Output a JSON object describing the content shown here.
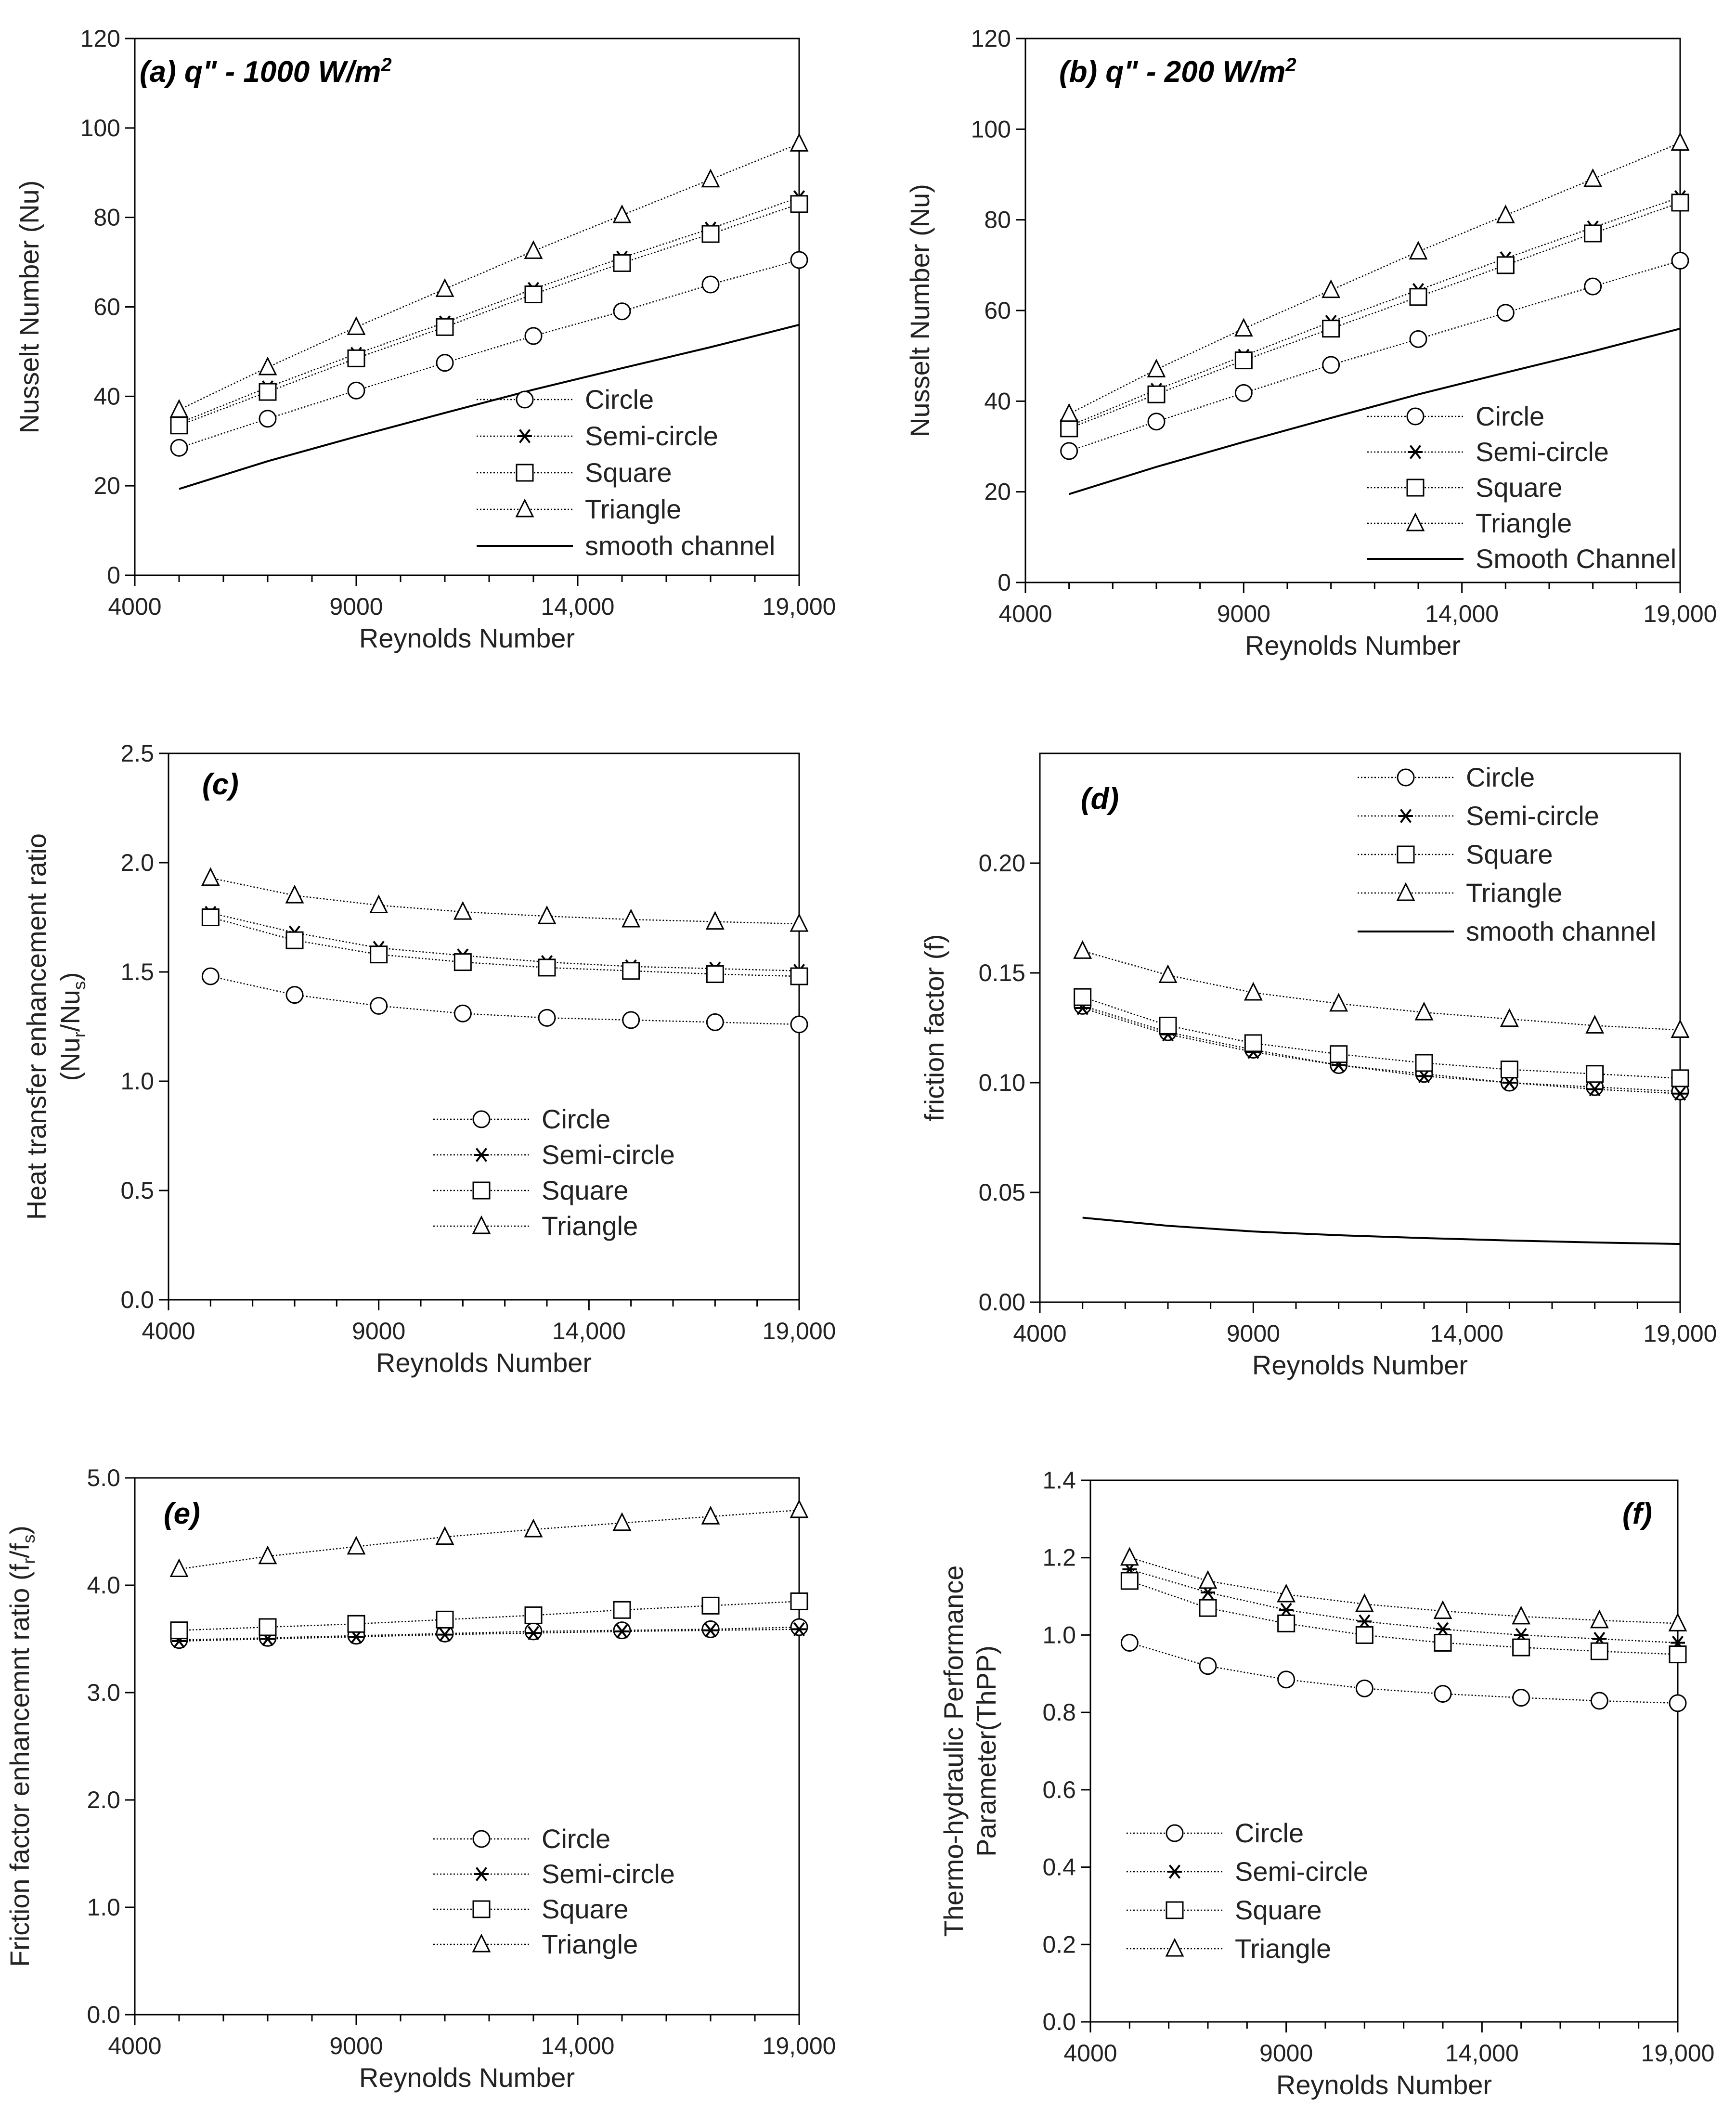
{
  "chart_data": [
    {
      "id": "a",
      "type": "line",
      "title": "(a) q\" - 1000 W/m²",
      "xlabel": "Reynolds Number",
      "ylabel": "Nusselt Number (Nu)",
      "xlim": [
        4000,
        19000
      ],
      "ylim": [
        0,
        120
      ],
      "xticks": [
        4000,
        9000,
        14000,
        19000
      ],
      "xtick_labels": [
        "4000",
        "9000",
        "14,000",
        "19,000"
      ],
      "yticks": [
        0,
        20,
        40,
        60,
        80,
        100,
        120
      ],
      "ytick_labels": [
        "0",
        "20",
        "40",
        "60",
        "80",
        "100",
        "120"
      ],
      "legend_position": "bottom-right",
      "x": [
        5000,
        7000,
        9000,
        11000,
        13000,
        15000,
        17000,
        19000
      ],
      "series": [
        {
          "name": "Circle",
          "marker": "circle",
          "values": [
            28.5,
            35.0,
            41.3,
            47.5,
            53.5,
            59.0,
            65.0,
            70.5
          ]
        },
        {
          "name": "Semi-circle",
          "marker": "asterisk",
          "values": [
            34.0,
            42.0,
            49.5,
            56.5,
            64.0,
            71.0,
            77.5,
            84.5
          ]
        },
        {
          "name": "Square",
          "marker": "square",
          "values": [
            33.5,
            41.0,
            48.5,
            55.5,
            62.8,
            69.8,
            76.3,
            83.0
          ]
        },
        {
          "name": "Triangle",
          "marker": "triangle",
          "values": [
            37.0,
            46.5,
            55.5,
            64.0,
            72.5,
            80.5,
            88.5,
            96.5
          ]
        },
        {
          "name": "smooth channel",
          "marker": "none",
          "values": [
            19.3,
            25.5,
            31.0,
            36.3,
            41.5,
            46.3,
            51.0,
            56.0
          ]
        }
      ]
    },
    {
      "id": "b",
      "type": "line",
      "title": "(b) q\" - 200 W/m²",
      "xlabel": "Reynolds Number",
      "ylabel": "Nusselt Number (Nu)",
      "xlim": [
        4000,
        19000
      ],
      "ylim": [
        0,
        120
      ],
      "xticks": [
        4000,
        9000,
        14000,
        19000
      ],
      "xtick_labels": [
        "4000",
        "9000",
        "14,000",
        "19,000"
      ],
      "yticks": [
        0,
        20,
        40,
        60,
        80,
        100,
        120
      ],
      "ytick_labels": [
        "0",
        "20",
        "40",
        "60",
        "80",
        "100",
        "120"
      ],
      "legend_position": "bottom-right",
      "x": [
        5000,
        7000,
        9000,
        11000,
        13000,
        15000,
        17000,
        19000
      ],
      "series": [
        {
          "name": "Circle",
          "marker": "circle",
          "values": [
            29.0,
            35.5,
            41.8,
            48.0,
            53.7,
            59.5,
            65.3,
            71.0
          ]
        },
        {
          "name": "Semi-circle",
          "marker": "asterisk",
          "values": [
            34.5,
            42.5,
            50.0,
            57.5,
            64.5,
            71.5,
            78.3,
            85.0
          ]
        },
        {
          "name": "Square",
          "marker": "square",
          "values": [
            34.0,
            41.5,
            49.0,
            56.0,
            63.0,
            70.0,
            77.0,
            83.8
          ]
        },
        {
          "name": "Triangle",
          "marker": "triangle",
          "values": [
            37.2,
            47.0,
            56.0,
            64.5,
            73.0,
            81.0,
            89.0,
            97.0
          ]
        },
        {
          "name": "Smooth Channel",
          "marker": "none",
          "values": [
            19.5,
            25.5,
            31.0,
            36.3,
            41.5,
            46.3,
            51.0,
            56.0
          ]
        }
      ]
    },
    {
      "id": "c",
      "type": "line",
      "title": "(c)",
      "xlabel": "Reynolds Number",
      "ylabel": "Heat transfer enhancement ratio",
      "ylabel_sub": "(Nu",
      "ylabel_sub_r": "r",
      "ylabel_sub_mid": "/Nu",
      "ylabel_sub_s": "s",
      "ylabel_sub_end": ")",
      "xlim": [
        4000,
        19000
      ],
      "ylim": [
        0,
        2.5
      ],
      "xticks": [
        4000,
        9000,
        14000,
        19000
      ],
      "xtick_labels": [
        "4000",
        "9000",
        "14,000",
        "19,000"
      ],
      "yticks": [
        0,
        0.5,
        1.0,
        1.5,
        2.0,
        2.5
      ],
      "ytick_labels": [
        "0.0",
        "0.5",
        "1.0",
        "1.5",
        "2.0",
        "2.5"
      ],
      "legend_position": "bottom-right",
      "x": [
        5000,
        7000,
        9000,
        11000,
        13000,
        15000,
        17000,
        19000
      ],
      "series": [
        {
          "name": "Circle",
          "marker": "circle",
          "values": [
            1.48,
            1.395,
            1.345,
            1.31,
            1.29,
            1.28,
            1.27,
            1.26
          ]
        },
        {
          "name": "Semi-circle",
          "marker": "asterisk",
          "values": [
            1.77,
            1.68,
            1.61,
            1.575,
            1.545,
            1.525,
            1.515,
            1.505
          ]
        },
        {
          "name": "Square",
          "marker": "square",
          "values": [
            1.75,
            1.645,
            1.58,
            1.545,
            1.52,
            1.505,
            1.49,
            1.48
          ]
        },
        {
          "name": "Triangle",
          "marker": "triangle",
          "values": [
            1.93,
            1.85,
            1.805,
            1.775,
            1.755,
            1.74,
            1.73,
            1.72
          ]
        }
      ]
    },
    {
      "id": "d",
      "type": "line",
      "title": "(d)",
      "xlabel": "Reynolds Number",
      "ylabel": "friction factor (f)",
      "xlim": [
        4000,
        19000
      ],
      "ylim": [
        0,
        0.25
      ],
      "xticks": [
        4000,
        9000,
        14000,
        19000
      ],
      "xtick_labels": [
        "4000",
        "9000",
        "14,000",
        "19,000"
      ],
      "yticks": [
        0,
        0.05,
        0.1,
        0.15,
        0.2
      ],
      "ytick_labels": [
        "0.00",
        "0.05",
        "0.10",
        "0.15",
        "0.20"
      ],
      "legend_position": "top-right",
      "x": [
        5000,
        7000,
        9000,
        11000,
        13000,
        15000,
        17000,
        19000
      ],
      "series": [
        {
          "name": "Circle",
          "marker": "circle",
          "values": [
            0.135,
            0.123,
            0.115,
            0.108,
            0.104,
            0.1,
            0.098,
            0.096
          ]
        },
        {
          "name": "Semi-circle",
          "marker": "asterisk",
          "values": [
            0.134,
            0.122,
            0.114,
            0.108,
            0.103,
            0.1,
            0.097,
            0.095
          ]
        },
        {
          "name": "Square",
          "marker": "square",
          "values": [
            0.139,
            0.126,
            0.118,
            0.113,
            0.109,
            0.106,
            0.104,
            0.102
          ]
        },
        {
          "name": "Triangle",
          "marker": "triangle",
          "values": [
            0.16,
            0.149,
            0.141,
            0.136,
            0.132,
            0.129,
            0.126,
            0.124
          ]
        },
        {
          "name": "smooth channel",
          "marker": "none",
          "values": [
            0.0385,
            0.0348,
            0.0322,
            0.0305,
            0.0292,
            0.0281,
            0.0272,
            0.0265
          ]
        }
      ]
    },
    {
      "id": "e",
      "type": "line",
      "title": "(e)",
      "xlabel": "Reynolds Number",
      "ylabel": "Friction factor enhancemnt ratio (f",
      "ylabel_sub_r": "r",
      "ylabel_sub_mid": "/f",
      "ylabel_sub_s": "s",
      "ylabel_sub_end": ")",
      "xlim": [
        4000,
        19000
      ],
      "ylim": [
        0,
        5
      ],
      "xticks": [
        4000,
        9000,
        14000,
        19000
      ],
      "xtick_labels": [
        "4000",
        "9000",
        "14,000",
        "19,000"
      ],
      "yticks": [
        0,
        1,
        2,
        3,
        4,
        5
      ],
      "ytick_labels": [
        "0.0",
        "1.0",
        "2.0",
        "3.0",
        "4.0",
        "5.0"
      ],
      "legend_position": "bottom-right",
      "x": [
        5000,
        7000,
        9000,
        11000,
        13000,
        15000,
        17000,
        19000
      ],
      "series": [
        {
          "name": "Circle",
          "marker": "circle",
          "values": [
            3.49,
            3.51,
            3.53,
            3.55,
            3.57,
            3.58,
            3.59,
            3.61
          ]
        },
        {
          "name": "Semi-circle",
          "marker": "asterisk",
          "values": [
            3.48,
            3.5,
            3.52,
            3.54,
            3.555,
            3.57,
            3.58,
            3.59
          ]
        },
        {
          "name": "Square",
          "marker": "square",
          "values": [
            3.58,
            3.61,
            3.64,
            3.68,
            3.72,
            3.77,
            3.81,
            3.85
          ]
        },
        {
          "name": "Triangle",
          "marker": "triangle",
          "values": [
            4.15,
            4.27,
            4.36,
            4.45,
            4.52,
            4.58,
            4.64,
            4.7
          ]
        }
      ]
    },
    {
      "id": "f",
      "type": "line",
      "title": "(f)",
      "xlabel": "Reynolds Number",
      "ylabel": "Thermo-hydraulic Performance",
      "ylabel2": "Parameter(ThPP)",
      "xlim": [
        4000,
        19000
      ],
      "ylim": [
        0,
        1.4
      ],
      "xticks": [
        4000,
        9000,
        14000,
        19000
      ],
      "xtick_labels": [
        "4000",
        "9000",
        "14,000",
        "19,000"
      ],
      "yticks": [
        0,
        0.2,
        0.4,
        0.6,
        0.8,
        1.0,
        1.2,
        1.4
      ],
      "ytick_labels": [
        "0.0",
        "0.2",
        "0.4",
        "0.6",
        "0.8",
        "1.0",
        "1.2",
        "1.4"
      ],
      "legend_position": "bottom-left",
      "x": [
        5000,
        7000,
        9000,
        11000,
        13000,
        15000,
        17000,
        19000
      ],
      "series": [
        {
          "name": "Circle",
          "marker": "circle",
          "values": [
            0.98,
            0.92,
            0.885,
            0.862,
            0.848,
            0.838,
            0.83,
            0.824
          ]
        },
        {
          "name": "Semi-circle",
          "marker": "asterisk",
          "values": [
            1.17,
            1.11,
            1.065,
            1.035,
            1.015,
            1.0,
            0.99,
            0.98
          ]
        },
        {
          "name": "Square",
          "marker": "square",
          "values": [
            1.14,
            1.07,
            1.03,
            1.0,
            0.98,
            0.968,
            0.958,
            0.95
          ]
        },
        {
          "name": "Triangle",
          "marker": "triangle",
          "values": [
            1.2,
            1.14,
            1.105,
            1.08,
            1.062,
            1.048,
            1.038,
            1.03
          ]
        }
      ]
    }
  ]
}
